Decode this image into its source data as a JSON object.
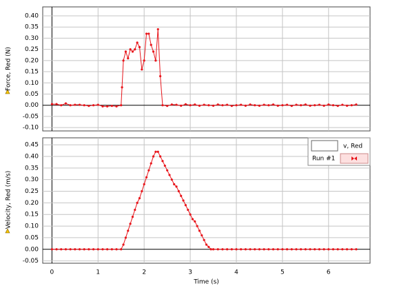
{
  "chart_data": [
    {
      "type": "line",
      "ylabel": "Force, Red (N)",
      "color": "#e8151b",
      "grid": true,
      "show_xtick_labels": false,
      "xlim": [
        -0.2,
        6.9
      ],
      "xticks": [
        0,
        1,
        2,
        3,
        4,
        5,
        6
      ],
      "ylim": [
        -0.115,
        0.44
      ],
      "yticks": [
        {
          "value": -0.1,
          "label": "-0.10"
        },
        {
          "value": -0.05,
          "label": "-0.05"
        },
        {
          "value": 0,
          "label": "0.00"
        },
        {
          "value": 0.05,
          "label": "0.05"
        },
        {
          "value": 0.1,
          "label": "0.10"
        },
        {
          "value": 0.15,
          "label": "0.15"
        },
        {
          "value": 0.2,
          "label": "0.20"
        },
        {
          "value": 0.25,
          "label": "0.25"
        },
        {
          "value": 0.3,
          "label": "0.30"
        },
        {
          "value": 0.35,
          "label": "0.35"
        },
        {
          "value": 0.4,
          "label": "0.40"
        }
      ],
      "x": [
        0,
        0.1,
        0.2,
        0.3,
        0.4,
        0.5,
        0.6,
        0.7,
        0.8,
        0.9,
        1.0,
        1.1,
        1.2,
        1.3,
        1.4,
        1.5,
        1.52,
        1.55,
        1.6,
        1.65,
        1.7,
        1.75,
        1.8,
        1.85,
        1.9,
        1.95,
        2.0,
        2.05,
        2.1,
        2.15,
        2.2,
        2.25,
        2.3,
        2.35,
        2.4,
        2.5,
        2.6,
        2.7,
        2.8,
        2.9,
        3.0,
        3.1,
        3.2,
        3.3,
        3.4,
        3.5,
        3.6,
        3.7,
        3.8,
        3.9,
        4.0,
        4.1,
        4.2,
        4.3,
        4.4,
        4.5,
        4.6,
        4.7,
        4.8,
        4.9,
        5.0,
        5.1,
        5.2,
        5.3,
        5.4,
        5.5,
        5.6,
        5.7,
        5.8,
        5.9,
        6.0,
        6.1,
        6.2,
        6.3,
        6.4,
        6.5,
        6.6
      ],
      "values": [
        0.005,
        0.005,
        0.0,
        0.008,
        0.0,
        0.002,
        0.002,
        0.0,
        -0.003,
        0.0,
        0.002,
        -0.005,
        -0.005,
        -0.003,
        -0.005,
        0.0,
        0.08,
        0.2,
        0.24,
        0.21,
        0.25,
        0.24,
        0.25,
        0.28,
        0.26,
        0.16,
        0.2,
        0.32,
        0.32,
        0.27,
        0.24,
        0.2,
        0.34,
        0.13,
        0.0,
        -0.003,
        0.003,
        0.002,
        -0.002,
        0.004,
        0.0,
        0.003,
        -0.002,
        0.002,
        0.0,
        -0.002,
        0.003,
        0.0,
        0.002,
        -0.003,
        0.0,
        0.002,
        -0.002,
        0.003,
        0.0,
        -0.002,
        0.002,
        0.0,
        0.003,
        -0.002,
        0.0,
        0.002,
        -0.003,
        0.002,
        0.0,
        0.003,
        -0.002,
        0.0,
        0.002,
        -0.002,
        0.003,
        0.0,
        -0.003,
        0.002,
        -0.002,
        0.0,
        0.003
      ]
    },
    {
      "type": "line",
      "ylabel": "Velocity, Red (m/s)",
      "xlabel": "Time (s)",
      "grid": true,
      "show_xtick_labels": true,
      "legend": {
        "run": "Run #1"
      },
      "xlim": [
        -0.2,
        6.9
      ],
      "xticks": [
        0,
        1,
        2,
        3,
        4,
        5,
        6
      ],
      "ylim": [
        -0.06,
        0.48
      ],
      "yticks": [
        {
          "value": -0.05,
          "label": "-0.05"
        },
        {
          "value": 0,
          "label": "0.00"
        },
        {
          "value": 0.05,
          "label": "0.05"
        },
        {
          "value": 0.1,
          "label": "0.10"
        },
        {
          "value": 0.15,
          "label": "0.15"
        },
        {
          "value": 0.2,
          "label": "0.20"
        },
        {
          "value": 0.25,
          "label": "0.25"
        },
        {
          "value": 0.3,
          "label": "0.30"
        },
        {
          "value": 0.35,
          "label": "0.35"
        },
        {
          "value": 0.4,
          "label": "0.40"
        },
        {
          "value": 0.45,
          "label": "0.45"
        }
      ],
      "x": [
        0,
        0.1,
        0.2,
        0.3,
        0.4,
        0.5,
        0.6,
        0.7,
        0.8,
        0.9,
        1.0,
        1.1,
        1.2,
        1.3,
        1.4,
        1.5,
        1.55,
        1.6,
        1.65,
        1.7,
        1.75,
        1.8,
        1.85,
        1.9,
        1.95,
        2.0,
        2.05,
        2.1,
        2.15,
        2.2,
        2.25,
        2.3,
        2.35,
        2.4,
        2.45,
        2.5,
        2.55,
        2.6,
        2.65,
        2.7,
        2.75,
        2.8,
        2.85,
        2.9,
        2.95,
        3.0,
        3.05,
        3.1,
        3.15,
        3.2,
        3.25,
        3.3,
        3.35,
        3.4,
        3.45,
        3.5,
        3.6,
        3.7,
        3.8,
        3.9,
        4.0,
        4.1,
        4.2,
        4.3,
        4.4,
        4.5,
        4.6,
        4.7,
        4.8,
        4.9,
        5.0,
        5.1,
        5.2,
        5.3,
        5.4,
        5.5,
        5.6,
        5.7,
        5.8,
        5.9,
        6.0,
        6.1,
        6.2,
        6.3,
        6.4,
        6.5,
        6.6
      ],
      "series": [
        {
          "name": "v, Red",
          "color": "#e8151b",
          "values": [
            0,
            0,
            0,
            0,
            0,
            0,
            0,
            0,
            0,
            0,
            0,
            0,
            0,
            0,
            0,
            0,
            0.02,
            0.05,
            0.08,
            0.11,
            0.14,
            0.17,
            0.2,
            0.22,
            0.25,
            0.28,
            0.31,
            0.34,
            0.37,
            0.4,
            0.42,
            0.42,
            0.4,
            0.38,
            0.36,
            0.34,
            0.32,
            0.3,
            0.28,
            0.27,
            0.25,
            0.23,
            0.21,
            0.19,
            0.17,
            0.15,
            0.13,
            0.12,
            0.1,
            0.08,
            0.06,
            0.04,
            0.02,
            0.01,
            0,
            0,
            0,
            0,
            0,
            0,
            0,
            0,
            0,
            0,
            0,
            0,
            0,
            0,
            0,
            0,
            0,
            0,
            0,
            0,
            0,
            0,
            0,
            0,
            0,
            0,
            0,
            0,
            0,
            0,
            0,
            0,
            0
          ]
        }
      ]
    }
  ]
}
